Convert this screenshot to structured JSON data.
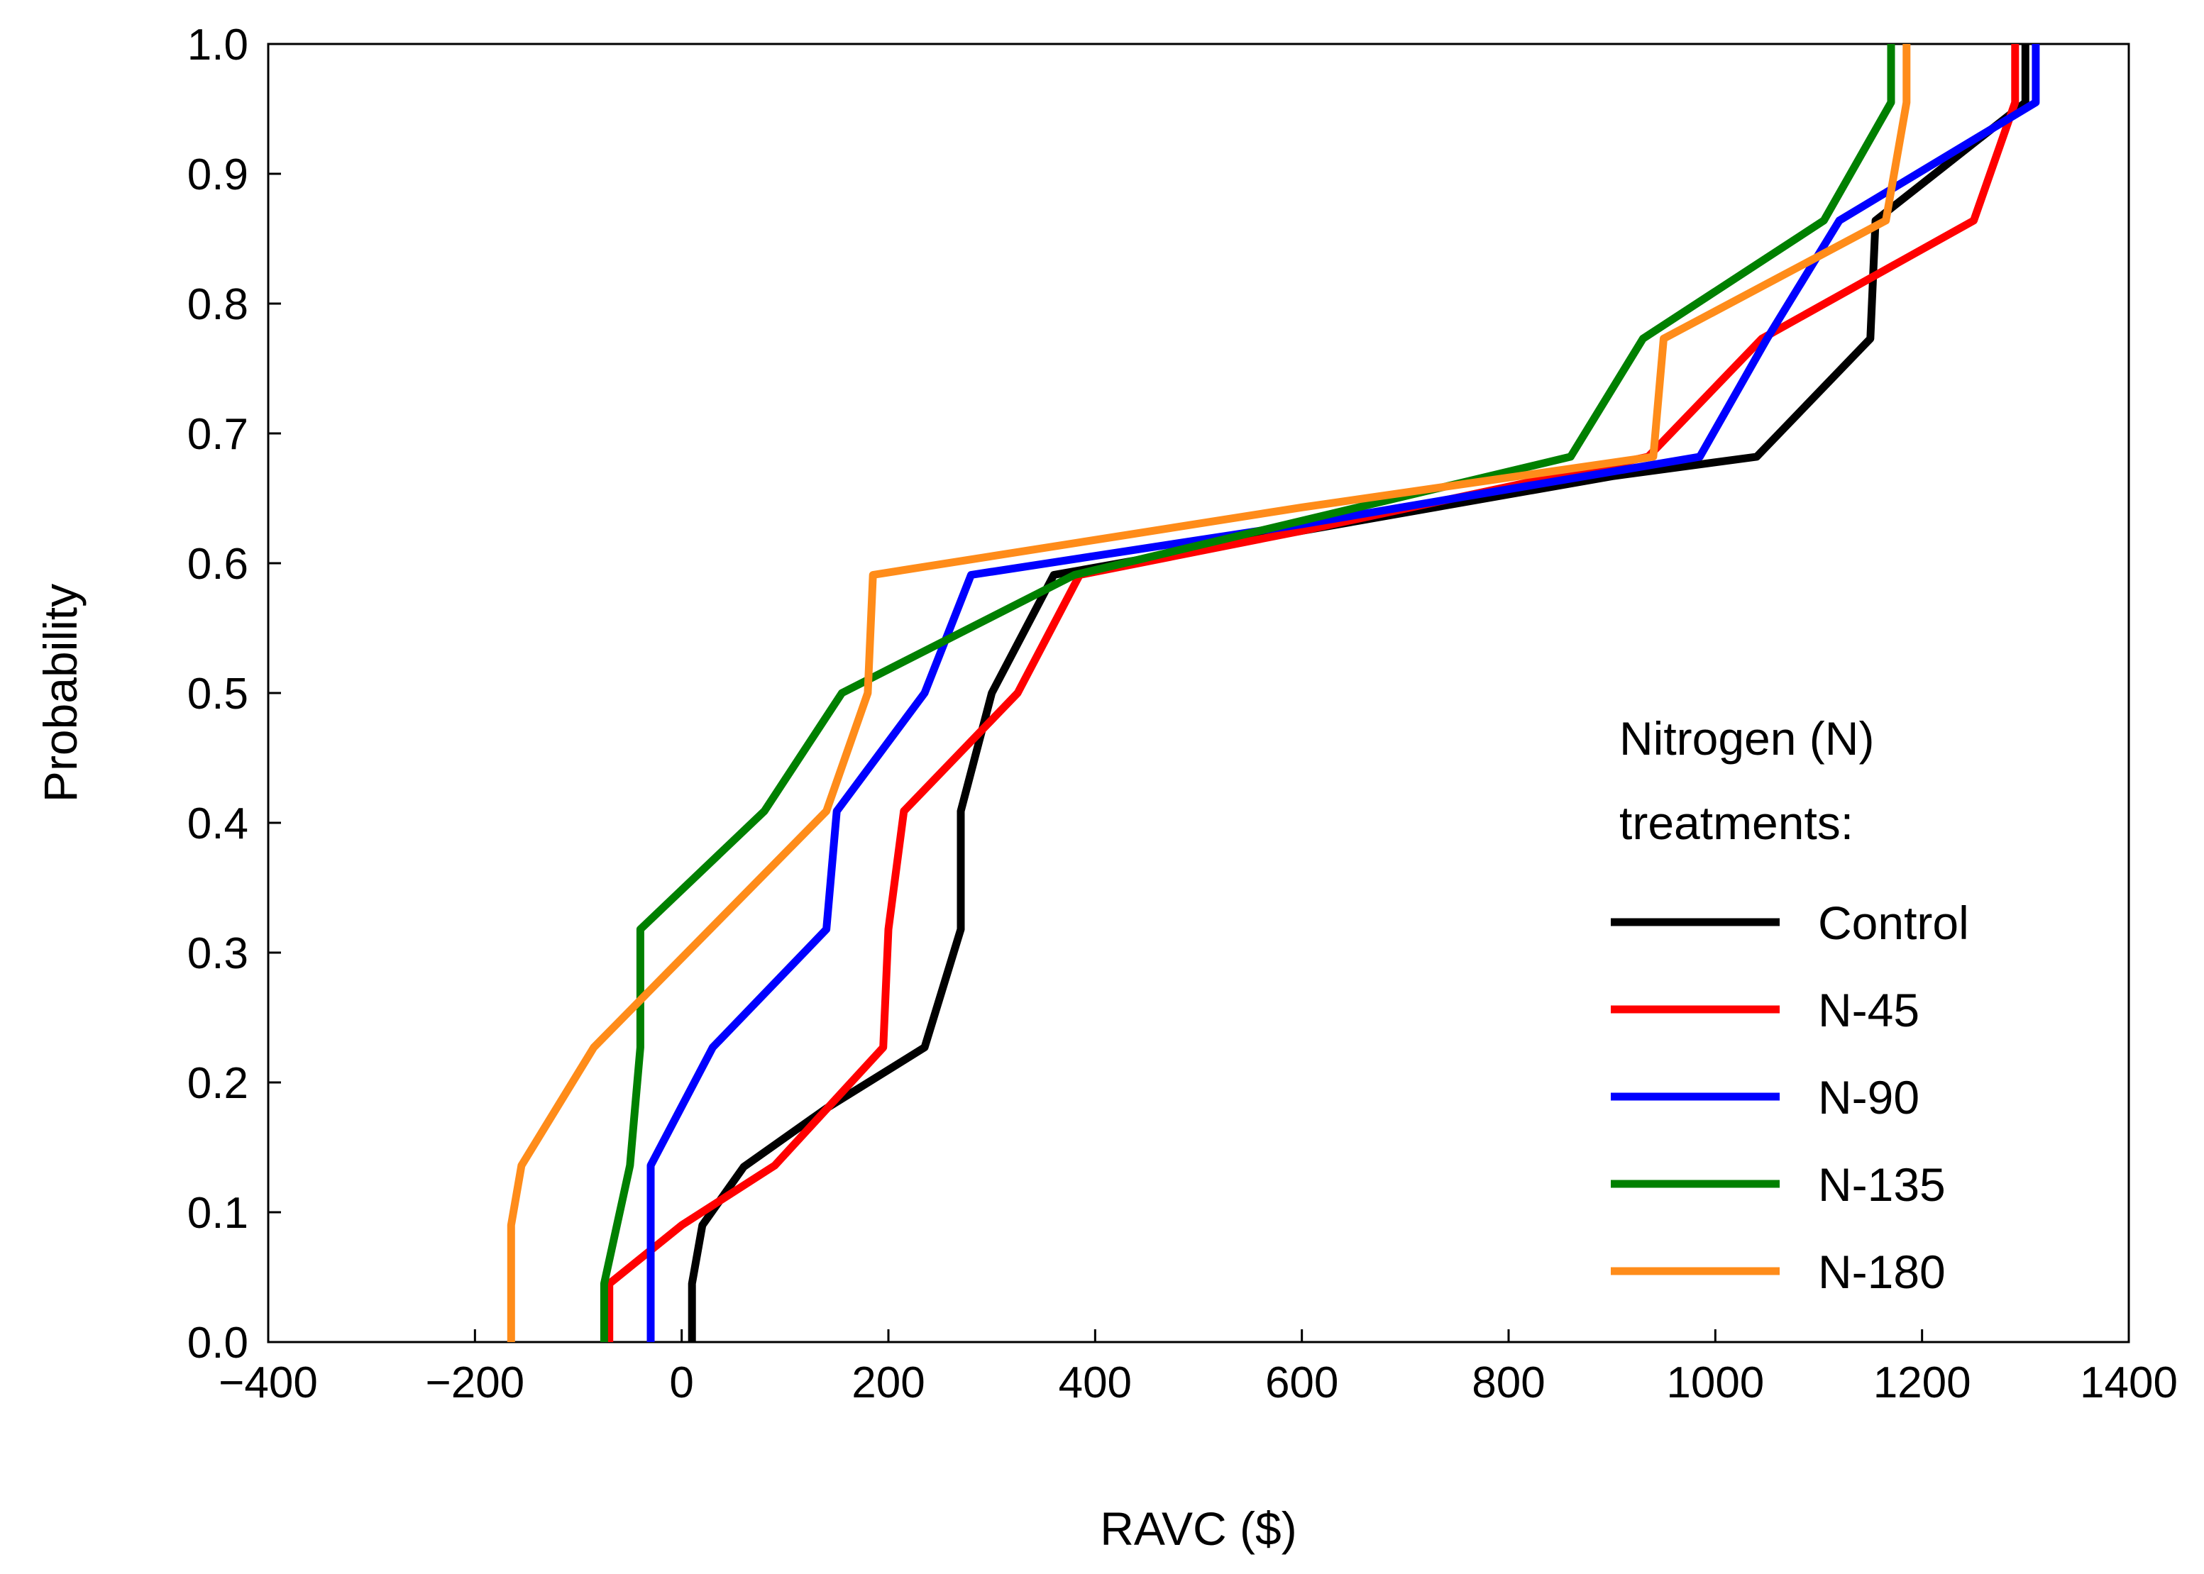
{
  "chart_data": {
    "type": "line",
    "xlabel": "RAVC ($)",
    "ylabel": "Probability",
    "xlim": [
      -400,
      1400
    ],
    "ylim": [
      0,
      1.0
    ],
    "xticks": [
      -400,
      -200,
      0,
      200,
      400,
      600,
      800,
      1000,
      1200,
      1400
    ],
    "xtick_labels": [
      "−400",
      "−200",
      "0",
      "200",
      "400",
      "600",
      "800",
      "1000",
      "1200",
      "1400"
    ],
    "yticks": [
      0,
      0.1,
      0.2,
      0.3,
      0.4,
      0.5,
      0.6,
      0.7,
      0.8,
      0.9,
      1.0
    ],
    "ytick_labels": [
      "0.0",
      "0.1",
      "0.2",
      "0.3",
      "0.4",
      "0.5",
      "0.6",
      "0.7",
      "0.8",
      "0.9",
      "1.0"
    ],
    "grid": false,
    "legend": {
      "title_lines": [
        "Nitrogen (N)",
        "treatments:"
      ],
      "position": "lower-right"
    },
    "series": [
      {
        "name": "Control",
        "color": "#000000",
        "points": [
          [
            10,
            0
          ],
          [
            10,
            0.045
          ],
          [
            20,
            0.09
          ],
          [
            60,
            0.135
          ],
          [
            140,
            0.18
          ],
          [
            235,
            0.227
          ],
          [
            270,
            0.318
          ],
          [
            270,
            0.409
          ],
          [
            300,
            0.5
          ],
          [
            360,
            0.591
          ],
          [
            600,
            0.625
          ],
          [
            900,
            0.667
          ],
          [
            1040,
            0.682
          ],
          [
            1150,
            0.773
          ],
          [
            1155,
            0.864
          ],
          [
            1300,
            0.955
          ],
          [
            1300,
            1.0
          ]
        ]
      },
      {
        "name": "N-45",
        "color": "#ff0000",
        "points": [
          [
            -70,
            0
          ],
          [
            -70,
            0.045
          ],
          [
            0,
            0.09
          ],
          [
            90,
            0.136
          ],
          [
            195,
            0.227
          ],
          [
            200,
            0.318
          ],
          [
            215,
            0.409
          ],
          [
            325,
            0.5
          ],
          [
            385,
            0.591
          ],
          [
            600,
            0.625
          ],
          [
            935,
            0.682
          ],
          [
            1045,
            0.773
          ],
          [
            1250,
            0.864
          ],
          [
            1290,
            0.955
          ],
          [
            1290,
            1.0
          ]
        ]
      },
      {
        "name": "N-90",
        "color": "#0000ff",
        "points": [
          [
            -30,
            0
          ],
          [
            -30,
            0.136
          ],
          [
            30,
            0.227
          ],
          [
            140,
            0.318
          ],
          [
            150,
            0.409
          ],
          [
            235,
            0.5
          ],
          [
            280,
            0.591
          ],
          [
            600,
            0.63
          ],
          [
            985,
            0.682
          ],
          [
            1050,
            0.773
          ],
          [
            1120,
            0.864
          ],
          [
            1310,
            0.955
          ],
          [
            1310,
            1.0
          ]
        ]
      },
      {
        "name": "N-135",
        "color": "#008000",
        "points": [
          [
            -75,
            0
          ],
          [
            -75,
            0.045
          ],
          [
            -50,
            0.136
          ],
          [
            -40,
            0.227
          ],
          [
            -40,
            0.318
          ],
          [
            80,
            0.409
          ],
          [
            155,
            0.5
          ],
          [
            380,
            0.591
          ],
          [
            860,
            0.682
          ],
          [
            930,
            0.773
          ],
          [
            1105,
            0.864
          ],
          [
            1170,
            0.955
          ],
          [
            1170,
            1.0
          ]
        ]
      },
      {
        "name": "N-180",
        "color": "#ff8c1a",
        "points": [
          [
            -165,
            0
          ],
          [
            -165,
            0.09
          ],
          [
            -155,
            0.136
          ],
          [
            -85,
            0.227
          ],
          [
            140,
            0.409
          ],
          [
            180,
            0.5
          ],
          [
            185,
            0.591
          ],
          [
            600,
            0.643
          ],
          [
            940,
            0.682
          ],
          [
            950,
            0.773
          ],
          [
            1165,
            0.864
          ],
          [
            1185,
            0.955
          ],
          [
            1185,
            1.0
          ]
        ]
      }
    ]
  }
}
